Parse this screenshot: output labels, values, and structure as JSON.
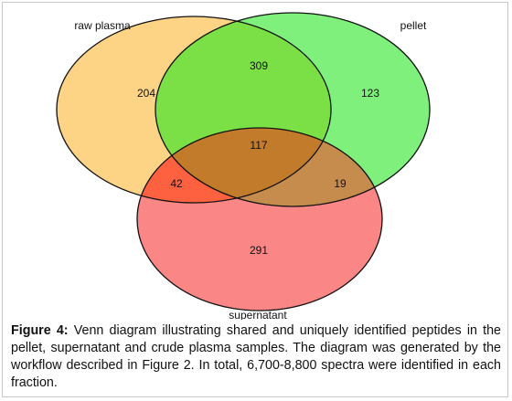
{
  "chart_data": {
    "type": "venn",
    "sets": [
      {
        "name": "raw plasma",
        "color": "#fdd486"
      },
      {
        "name": "pellet",
        "color": "#80f07c"
      },
      {
        "name": "supernatant",
        "color": "#fa8686"
      }
    ],
    "regions": [
      {
        "sets": [
          0
        ],
        "value": 204,
        "color": "#fdd486"
      },
      {
        "sets": [
          1
        ],
        "value": 123,
        "color": "#80f07c"
      },
      {
        "sets": [
          2
        ],
        "value": 291,
        "color": "#fa8686"
      },
      {
        "sets": [
          0,
          1
        ],
        "value": 309,
        "color": "#7ae046"
      },
      {
        "sets": [
          0,
          2
        ],
        "value": 42,
        "color": "#fd6140"
      },
      {
        "sets": [
          1,
          2
        ],
        "value": 19,
        "color": "#c58c4e"
      },
      {
        "sets": [
          0,
          1,
          2
        ],
        "value": 117,
        "color": "#c27b2b"
      }
    ],
    "caption": {
      "label": "Figure 4:",
      "text": "Venn diagram illustrating shared and uniquely identified peptides in the pellet, supernatant and crude plasma samples. The diagram was generated by the workflow described in Figure 2. In total, 6,700-8,800 spectra were identified in each fraction."
    }
  }
}
